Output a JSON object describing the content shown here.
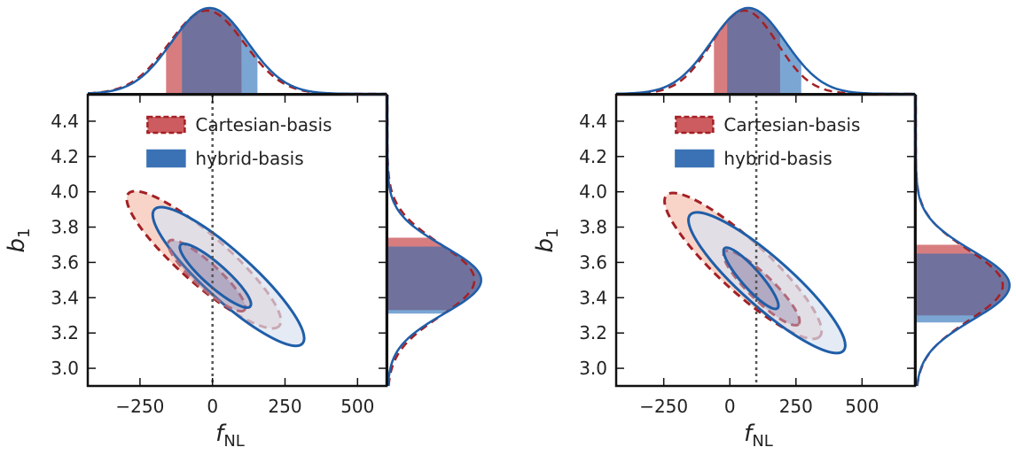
{
  "colors": {
    "cartesian_line": "#a32024",
    "cartesian_fill": "#f5c6b6",
    "cartesian_band": "#cd5c60",
    "hybrid_line": "#1f5ea8",
    "hybrid_fill": "#d9e3f1",
    "hybrid_band": "#5a90c8",
    "overlap": "#6f6a95",
    "inner_fill": "#8a7fa6",
    "truth": "#555555"
  },
  "chart_data": [
    {
      "type": "scatter",
      "panel": "left",
      "xlabel": "f",
      "xlabel_sub": "NL",
      "ylabel": "b",
      "ylabel_sub": "1",
      "xlim": [
        -430,
        600
      ],
      "ylim": [
        2.9,
        4.55
      ],
      "xticks": [
        -250,
        0,
        250,
        500
      ],
      "xtick_labels": [
        "−250",
        "0",
        "250",
        "500"
      ],
      "yticks": [
        3.0,
        3.2,
        3.4,
        3.6,
        3.8,
        4.0,
        4.2,
        4.4
      ],
      "ytick_labels": [
        "3.0",
        "3.2",
        "3.4",
        "3.6",
        "3.8",
        "4.0",
        "4.2",
        "4.4"
      ],
      "truth_fnl": 0,
      "legend": [
        "Cartesian-basis",
        "hybrid-basis"
      ],
      "legend_position": "top-right",
      "series": [
        {
          "name": "Cartesian-basis",
          "center": [
            -30,
            3.52
          ],
          "outer_contour": {
            "fnl_extent": [
              -290,
              230
            ],
            "b1_extent": [
              3.24,
              3.99
            ]
          },
          "inner_contour": {
            "fnl_extent": [
              -150,
              110
            ],
            "b1_extent": [
              3.33,
              3.72
            ]
          },
          "fnl_peak": -20,
          "fnl_68_band": [
            -160,
            100
          ],
          "b1_peak": 3.5,
          "b1_68_band": [
            3.33,
            3.74
          ]
        },
        {
          "name": "hybrid-basis",
          "center": [
            0,
            3.52
          ],
          "outer_contour": {
            "fnl_extent": [
              -200,
              310
            ],
            "b1_extent": [
              3.14,
              3.9
            ]
          },
          "inner_contour": {
            "fnl_extent": [
              -110,
              130
            ],
            "b1_extent": [
              3.35,
              3.7
            ]
          },
          "fnl_peak": -10,
          "fnl_68_band": [
            -105,
            155
          ],
          "b1_peak": 3.5,
          "b1_68_band": [
            3.31,
            3.69
          ]
        }
      ]
    },
    {
      "type": "scatter",
      "panel": "right",
      "xlabel": "f",
      "xlabel_sub": "NL",
      "ylabel": "b",
      "ylabel_sub": "1",
      "xlim": [
        -430,
        700
      ],
      "ylim": [
        2.9,
        4.55
      ],
      "xticks": [
        -250,
        0,
        250,
        500
      ],
      "xtick_labels": [
        "−250",
        "0",
        "250",
        "500"
      ],
      "yticks": [
        3.0,
        3.2,
        3.4,
        3.6,
        3.8,
        4.0,
        4.2,
        4.4
      ],
      "ytick_labels": [
        "3.0",
        "3.2",
        "3.4",
        "3.6",
        "3.8",
        "4.0",
        "4.2",
        "4.4"
      ],
      "truth_fnl": 100,
      "legend": [
        "Cartesian-basis",
        "hybrid-basis"
      ],
      "legend_position": "top-right",
      "series": [
        {
          "name": "Cartesian-basis",
          "center": [
            80,
            3.49
          ],
          "outer_contour": {
            "fnl_extent": [
              -240,
              340
            ],
            "b1_extent": [
              3.18,
              3.98
            ]
          },
          "inner_contour": {
            "fnl_extent": [
              -20,
              260
            ],
            "b1_extent": [
              3.25,
              3.66
            ]
          },
          "fnl_peak": 55,
          "fnl_68_band": [
            -60,
            190
          ],
          "b1_peak": 3.47,
          "b1_68_band": [
            3.3,
            3.7
          ]
        },
        {
          "name": "hybrid-basis",
          "center": [
            110,
            3.47
          ],
          "outer_contour": {
            "fnl_extent": [
              -150,
              430
            ],
            "b1_extent": [
              3.1,
              3.87
            ]
          },
          "inner_contour": {
            "fnl_extent": [
              -20,
              180
            ],
            "b1_extent": [
              3.34,
              3.68
            ]
          },
          "fnl_peak": 70,
          "fnl_68_band": [
            -10,
            270
          ],
          "b1_peak": 3.47,
          "b1_68_band": [
            3.26,
            3.65
          ]
        }
      ]
    }
  ]
}
